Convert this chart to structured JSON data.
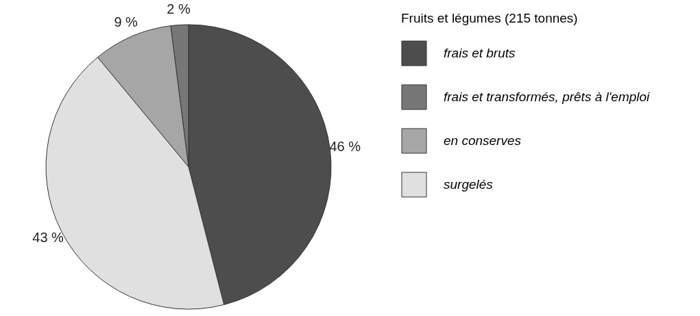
{
  "chart_data": {
    "type": "pie",
    "legend_title": "Fruits et légumes (215 tonnes)",
    "categories": [
      "frais et bruts",
      "frais et transformés, prêts à l'emploi",
      "en conserves",
      "surgelés"
    ],
    "values": [
      46,
      2,
      9,
      43
    ],
    "colors": [
      "#4d4d4d",
      "#777777",
      "#a6a6a6",
      "#e0e0e0"
    ],
    "value_labels": [
      "46 %",
      "2 %",
      "9 %",
      "43 %"
    ],
    "legend": "right"
  }
}
